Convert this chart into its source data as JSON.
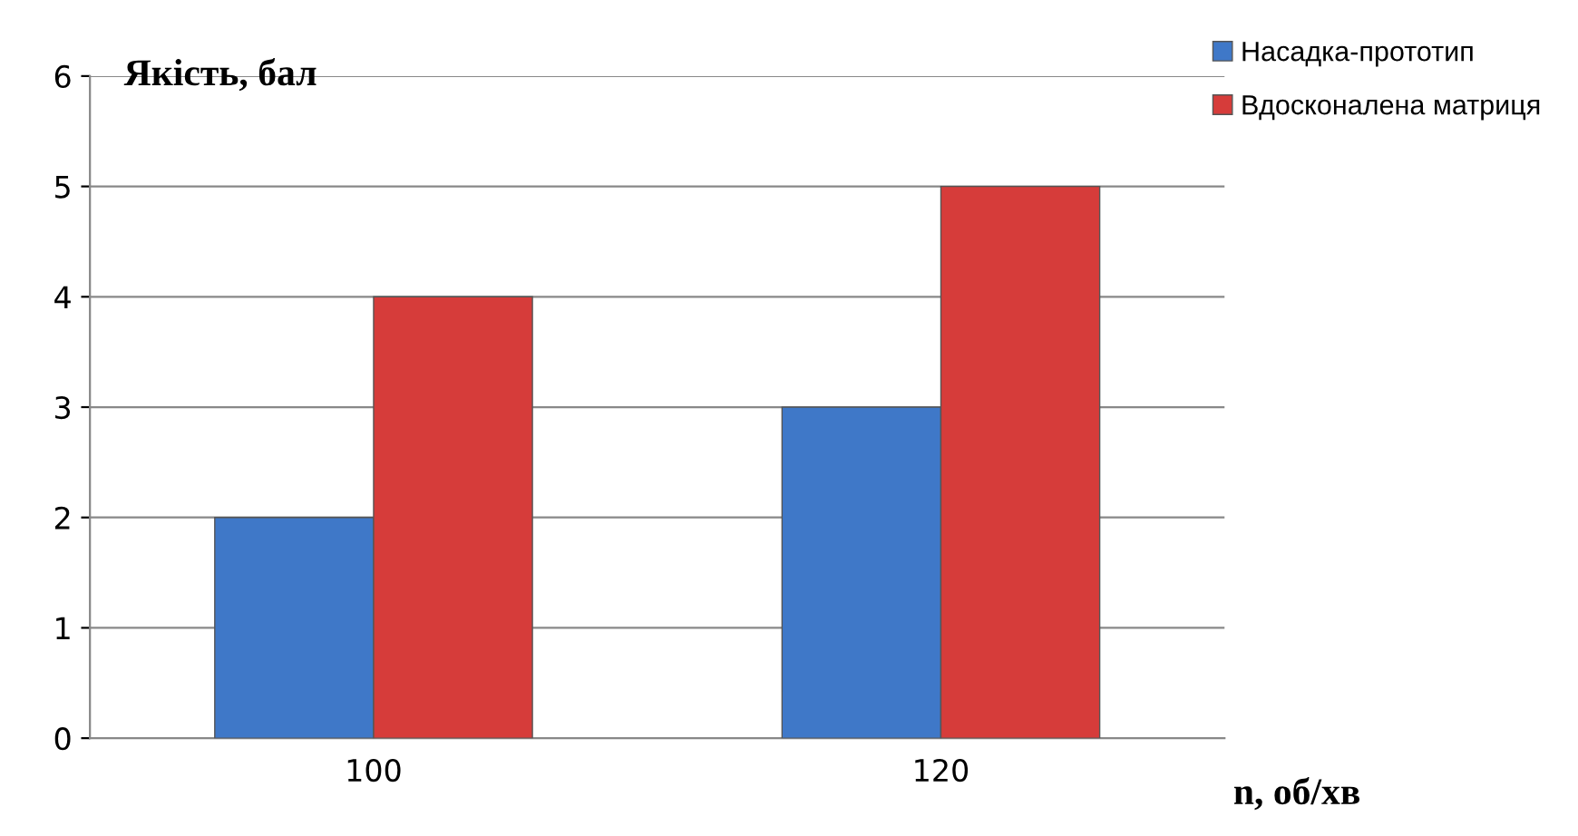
{
  "chart_data": {
    "type": "bar",
    "ylabel": "Якість, бал",
    "xlabel": "n, об/хв",
    "categories": [
      "100",
      "120"
    ],
    "series": [
      {
        "name": "Насадка-прототип",
        "color": "#3f78c8",
        "values": [
          2,
          3
        ]
      },
      {
        "name": "Вдосконалена матриця",
        "color": "#d63c3a",
        "values": [
          4,
          5
        ]
      }
    ],
    "ylim": [
      0,
      6
    ],
    "yticks": [
      0,
      1,
      2,
      3,
      4,
      5,
      6
    ],
    "grid": "y",
    "legend": "top right"
  }
}
